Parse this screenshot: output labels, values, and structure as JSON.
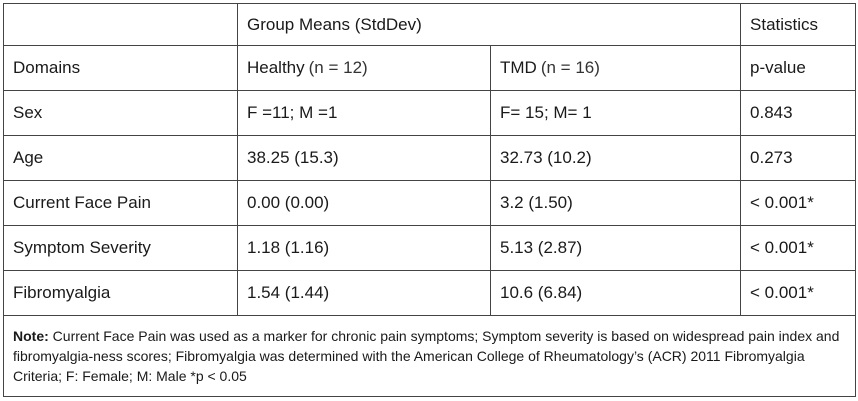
{
  "table": {
    "header": {
      "group_means": "Group Means (StdDev)",
      "statistics": "Statistics"
    },
    "columns": [
      {
        "label": "Domains"
      },
      {
        "label": "Healthy",
        "detail": "(n = 12)"
      },
      {
        "label": "TMD",
        "detail": "(n = 16)"
      },
      {
        "label": "p-value"
      }
    ],
    "rows": [
      [
        "Sex",
        "F =11; M =1",
        "F= 15; M= 1",
        "0.843"
      ],
      [
        "Age",
        "38.25 (15.3)",
        "32.73 (10.2)",
        "0.273"
      ],
      [
        "Current Face Pain",
        "0.00 (0.00)",
        "3.2 (1.50)",
        "< 0.001*"
      ],
      [
        "Symptom Severity",
        "1.18 (1.16)",
        "5.13 (2.87)",
        "< 0.001*"
      ],
      [
        "Fibromyalgia",
        "1.54 (1.44)",
        "10.6 (6.84)",
        "< 0.001*"
      ]
    ],
    "note": {
      "label": "Note:",
      "text": "Current Face Pain was used as a marker for chronic pain symptoms; Symptom severity is based on widespread pain index and fibromyalgia-ness scores; Fibromyalgia was determined with the American College of Rheumatology’s (ACR) 2011 Fibromyalgia Criteria; F: Female; M: Male *p < 0.05"
    }
  }
}
